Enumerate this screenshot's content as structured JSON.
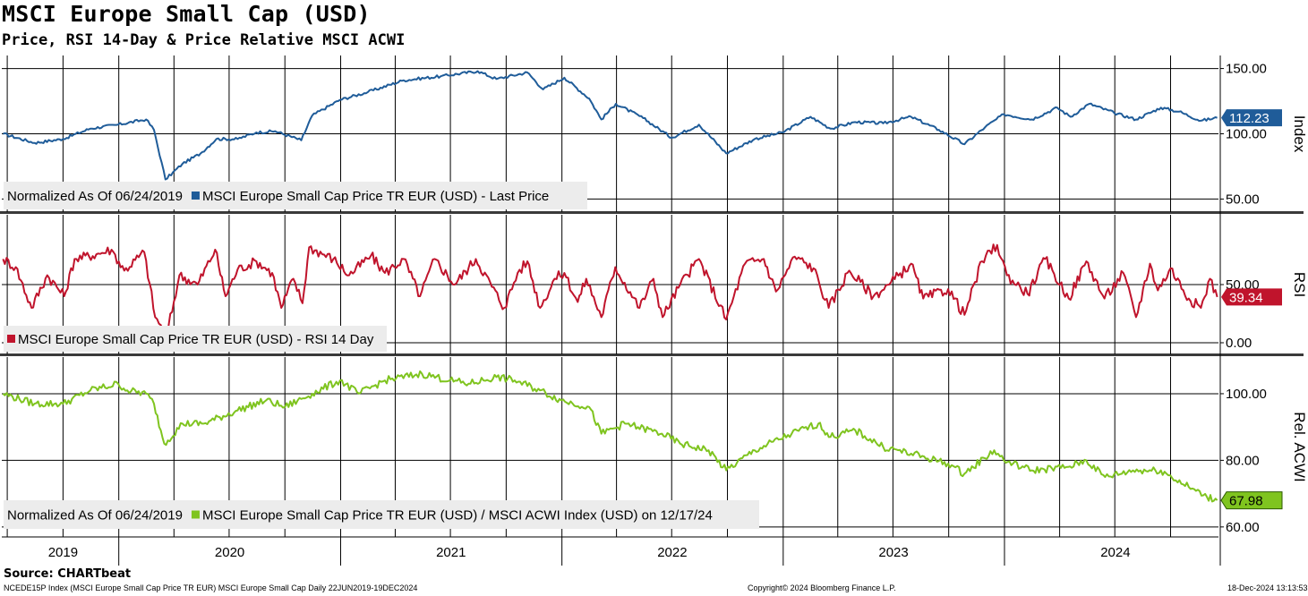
{
  "header": {
    "title": "MSCI Europe Small Cap (USD)",
    "subtitle": "Price, RSI 14-Day & Price Relative MSCI ACWI"
  },
  "footer": {
    "source": "Source: CHARTbeat",
    "ticker_line": "NCEDE15P Index (MSCI Europe Small Cap Price TR EUR) MSCI Europe Small Cap  Daily 22JUN2019-19DEC2024",
    "copyright": "Copyright© 2024 Bloomberg Finance L.P.",
    "timestamp": "18-Dec-2024 13:13:53"
  },
  "chart_data": [
    {
      "type": "line",
      "panel": "price",
      "axis_label": "Index",
      "ylim": [
        40,
        160
      ],
      "yticks": [
        "150.00",
        "100.00",
        "50.00"
      ],
      "ytick_values": [
        150,
        100,
        50
      ],
      "legend_prefix": "Normalized As Of 06/24/2019",
      "series": [
        {
          "name": "MSCI Europe Small Cap Price TR EUR (USD) - Last Price",
          "color": "#1f5c99",
          "last_label": "112.23",
          "points": [
            [
              "2019-06-24",
              100
            ],
            [
              "2019-08-15",
              93
            ],
            [
              "2019-10-01",
              96
            ],
            [
              "2019-11-15",
              104
            ],
            [
              "2019-12-31",
              107
            ],
            [
              "2020-02-15",
              111
            ],
            [
              "2020-02-28",
              103
            ],
            [
              "2020-03-18",
              65
            ],
            [
              "2020-04-15",
              77
            ],
            [
              "2020-05-15",
              85
            ],
            [
              "2020-06-10",
              96
            ],
            [
              "2020-07-15",
              96
            ],
            [
              "2020-08-15",
              101
            ],
            [
              "2020-09-15",
              102
            ],
            [
              "2020-10-28",
              95
            ],
            [
              "2020-11-15",
              114
            ],
            [
              "2020-12-31",
              126
            ],
            [
              "2021-02-15",
              132
            ],
            [
              "2021-04-15",
              141
            ],
            [
              "2021-06-15",
              144
            ],
            [
              "2021-08-15",
              148
            ],
            [
              "2021-09-15",
              142
            ],
            [
              "2021-11-05",
              147
            ],
            [
              "2021-12-01",
              134
            ],
            [
              "2022-01-05",
              143
            ],
            [
              "2022-02-15",
              127
            ],
            [
              "2022-03-07",
              111
            ],
            [
              "2022-03-31",
              123
            ],
            [
              "2022-05-15",
              112
            ],
            [
              "2022-07-01",
              97
            ],
            [
              "2022-08-15",
              107
            ],
            [
              "2022-09-29",
              85
            ],
            [
              "2022-11-15",
              96
            ],
            [
              "2022-12-31",
              101
            ],
            [
              "2023-02-15",
              113
            ],
            [
              "2023-03-20",
              104
            ],
            [
              "2023-04-30",
              109
            ],
            [
              "2023-06-15",
              108
            ],
            [
              "2023-07-31",
              113
            ],
            [
              "2023-09-15",
              103
            ],
            [
              "2023-10-27",
              92
            ],
            [
              "2023-11-30",
              105
            ],
            [
              "2023-12-31",
              115
            ],
            [
              "2024-02-15",
              111
            ],
            [
              "2024-03-28",
              120
            ],
            [
              "2024-04-19",
              113
            ],
            [
              "2024-05-20",
              123
            ],
            [
              "2024-06-30",
              116
            ],
            [
              "2024-08-05",
              111
            ],
            [
              "2024-09-15",
              120
            ],
            [
              "2024-10-15",
              117
            ],
            [
              "2024-11-20",
              110
            ],
            [
              "2024-12-17",
              112.23
            ]
          ]
        }
      ]
    },
    {
      "type": "line",
      "panel": "rsi",
      "axis_label": "RSI",
      "ylim": [
        -10,
        110
      ],
      "yticks": [
        "50.00",
        "0.00"
      ],
      "ytick_values": [
        50,
        0
      ],
      "legend_prefix": "",
      "series": [
        {
          "name": "MSCI Europe Small Cap Price TR EUR (USD) - RSI 14 Day",
          "color": "#c0142c",
          "last_label": "39.34",
          "points": [
            [
              "2019-06-24",
              72
            ],
            [
              "2019-07-15",
              65
            ],
            [
              "2019-08-10",
              30
            ],
            [
              "2019-09-05",
              58
            ],
            [
              "2019-10-03",
              40
            ],
            [
              "2019-10-20",
              72
            ],
            [
              "2019-11-25",
              76
            ],
            [
              "2019-12-20",
              80
            ],
            [
              "2020-01-10",
              62
            ],
            [
              "2020-02-12",
              78
            ],
            [
              "2020-03-01",
              22
            ],
            [
              "2020-03-20",
              6
            ],
            [
              "2020-04-10",
              58
            ],
            [
              "2020-05-10",
              50
            ],
            [
              "2020-06-08",
              80
            ],
            [
              "2020-06-25",
              40
            ],
            [
              "2020-07-15",
              63
            ],
            [
              "2020-08-15",
              70
            ],
            [
              "2020-09-10",
              60
            ],
            [
              "2020-09-25",
              30
            ],
            [
              "2020-10-15",
              55
            ],
            [
              "2020-10-30",
              34
            ],
            [
              "2020-11-10",
              82
            ],
            [
              "2020-12-20",
              72
            ],
            [
              "2021-01-15",
              58
            ],
            [
              "2021-02-20",
              75
            ],
            [
              "2021-03-15",
              60
            ],
            [
              "2021-04-15",
              72
            ],
            [
              "2021-05-12",
              40
            ],
            [
              "2021-06-05",
              72
            ],
            [
              "2021-07-08",
              50
            ],
            [
              "2021-08-12",
              72
            ],
            [
              "2021-09-28",
              30
            ],
            [
              "2021-10-20",
              60
            ],
            [
              "2021-11-05",
              70
            ],
            [
              "2021-11-26",
              30
            ],
            [
              "2021-12-20",
              55
            ],
            [
              "2022-01-05",
              60
            ],
            [
              "2022-01-27",
              35
            ],
            [
              "2022-02-10",
              55
            ],
            [
              "2022-03-07",
              22
            ],
            [
              "2022-03-30",
              65
            ],
            [
              "2022-05-09",
              30
            ],
            [
              "2022-06-01",
              55
            ],
            [
              "2022-06-16",
              22
            ],
            [
              "2022-07-15",
              50
            ],
            [
              "2022-08-15",
              72
            ],
            [
              "2022-09-29",
              20
            ],
            [
              "2022-10-30",
              68
            ],
            [
              "2022-11-30",
              72
            ],
            [
              "2022-12-20",
              44
            ],
            [
              "2023-01-20",
              74
            ],
            [
              "2023-02-20",
              64
            ],
            [
              "2023-03-17",
              30
            ],
            [
              "2023-04-20",
              62
            ],
            [
              "2023-05-30",
              40
            ],
            [
              "2023-06-25",
              50
            ],
            [
              "2023-07-31",
              68
            ],
            [
              "2023-08-20",
              38
            ],
            [
              "2023-09-30",
              46
            ],
            [
              "2023-10-27",
              24
            ],
            [
              "2023-11-25",
              70
            ],
            [
              "2023-12-20",
              84
            ],
            [
              "2024-01-05",
              58
            ],
            [
              "2024-02-08",
              42
            ],
            [
              "2024-03-08",
              72
            ],
            [
              "2024-04-16",
              38
            ],
            [
              "2024-05-15",
              70
            ],
            [
              "2024-06-14",
              38
            ],
            [
              "2024-07-15",
              60
            ],
            [
              "2024-08-05",
              22
            ],
            [
              "2024-08-28",
              68
            ],
            [
              "2024-09-10",
              45
            ],
            [
              "2024-10-01",
              64
            ],
            [
              "2024-10-31",
              38
            ],
            [
              "2024-11-20",
              30
            ],
            [
              "2024-12-05",
              55
            ],
            [
              "2024-12-17",
              39.34
            ]
          ]
        }
      ]
    },
    {
      "type": "line",
      "panel": "relative",
      "axis_label": "Rel. ACWI",
      "ylim": [
        57,
        111
      ],
      "yticks": [
        "100.00",
        "80.00",
        "60.00"
      ],
      "ytick_values": [
        100,
        80,
        60
      ],
      "legend_prefix": "Normalized As Of 06/24/2019",
      "series": [
        {
          "name": "MSCI Europe Small Cap Price TR EUR (USD) / MSCI ACWI Index (USD) on 12/17/24",
          "color": "#7fc41f",
          "last_label": "67.98",
          "points": [
            [
              "2019-06-24",
              100
            ],
            [
              "2019-08-15",
              97
            ],
            [
              "2019-10-01",
              97
            ],
            [
              "2019-11-15",
              101
            ],
            [
              "2019-12-31",
              103
            ],
            [
              "2020-01-15",
              101
            ],
            [
              "2020-02-15",
              100
            ],
            [
              "2020-02-28",
              97
            ],
            [
              "2020-03-16",
              85
            ],
            [
              "2020-04-15",
              91
            ],
            [
              "2020-05-20",
              91
            ],
            [
              "2020-07-15",
              95
            ],
            [
              "2020-08-31",
              98
            ],
            [
              "2020-10-01",
              96
            ],
            [
              "2020-11-15",
              100
            ],
            [
              "2020-12-31",
              104
            ],
            [
              "2021-01-31",
              100
            ],
            [
              "2021-03-15",
              104
            ],
            [
              "2021-05-15",
              106
            ],
            [
              "2021-06-30",
              104
            ],
            [
              "2021-07-31",
              103
            ],
            [
              "2021-09-15",
              105
            ],
            [
              "2021-10-15",
              104
            ],
            [
              "2021-11-26",
              101
            ],
            [
              "2021-12-31",
              98
            ],
            [
              "2022-02-15",
              96
            ],
            [
              "2022-03-07",
              88
            ],
            [
              "2022-04-15",
              91
            ],
            [
              "2022-06-15",
              88
            ],
            [
              "2022-07-15",
              85
            ],
            [
              "2022-08-31",
              83
            ],
            [
              "2022-09-29",
              77
            ],
            [
              "2022-11-15",
              83
            ],
            [
              "2023-01-15",
              88
            ],
            [
              "2023-02-28",
              91
            ],
            [
              "2023-03-20",
              87
            ],
            [
              "2023-04-30",
              89
            ],
            [
              "2023-06-15",
              84
            ],
            [
              "2023-07-31",
              82
            ],
            [
              "2023-09-30",
              79
            ],
            [
              "2023-10-27",
              76
            ],
            [
              "2023-12-15",
              83
            ],
            [
              "2023-12-31",
              80
            ],
            [
              "2024-02-15",
              77
            ],
            [
              "2024-04-15",
              78
            ],
            [
              "2024-05-15",
              80
            ],
            [
              "2024-06-15",
              75
            ],
            [
              "2024-07-31",
              77
            ],
            [
              "2024-09-15",
              77
            ],
            [
              "2024-10-31",
              72
            ],
            [
              "2024-11-30",
              69
            ],
            [
              "2024-12-17",
              67.98
            ]
          ]
        }
      ]
    }
  ],
  "x_axis": {
    "start": "2019-06-22",
    "end": "2024-12-19",
    "year_labels": [
      {
        "label": "2019",
        "date": "2019-10-01"
      },
      {
        "label": "2020",
        "date": "2020-07-02"
      },
      {
        "label": "2021",
        "date": "2021-07-02"
      },
      {
        "label": "2022",
        "date": "2022-07-02"
      },
      {
        "label": "2023",
        "date": "2023-07-02"
      },
      {
        "label": "2024",
        "date": "2024-07-02"
      }
    ]
  },
  "colors": {
    "grid": "#000000",
    "panel_separator": "#3a3a3a",
    "legend_bg": "#ececec"
  }
}
